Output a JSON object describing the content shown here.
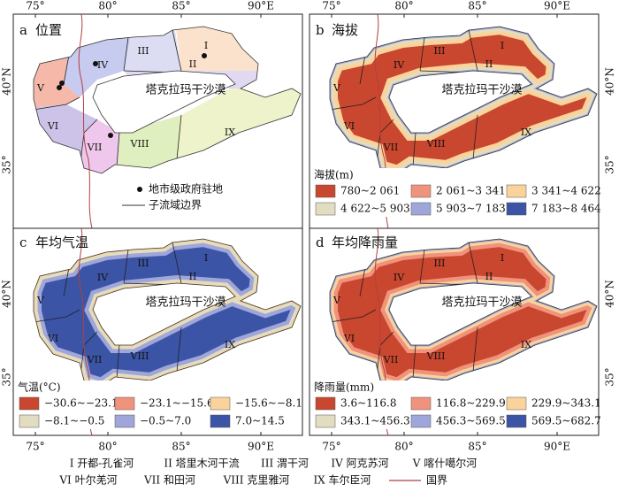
{
  "axes": {
    "lon_ticks": [
      "75°",
      "80°",
      "85°",
      "90°E"
    ],
    "lat_ticks": [
      "40°N",
      "35°"
    ]
  },
  "desert_label": "塔克拉玛干沙漠",
  "region_labels": [
    "I",
    "II",
    "III",
    "IV",
    "V",
    "VI",
    "VII",
    "VIII",
    "IX"
  ],
  "panels": [
    {
      "letter": "a",
      "title": "位置",
      "legend": [
        {
          "label": "地市级政府驻地"
        },
        {
          "label": "子流域边界"
        }
      ]
    },
    {
      "letter": "b",
      "title": "海拔",
      "legend_title": "海拔(m)",
      "legend": [
        {
          "label": "780~2 061",
          "color": "#c9462f"
        },
        {
          "label": "2 061~3 341",
          "color": "#f0937c"
        },
        {
          "label": "3 341~4 622",
          "color": "#fad39c"
        },
        {
          "label": "4 622~5 903",
          "color": "#e2ddc1"
        },
        {
          "label": "5 903~7 183",
          "color": "#9fa6d9"
        },
        {
          "label": "7 183~8 464",
          "color": "#3b54a5"
        }
      ]
    },
    {
      "letter": "c",
      "title": "年均气温",
      "legend_title": "气温(°C)",
      "legend": [
        {
          "label": "−30.6~−23.1",
          "color": "#c9462f"
        },
        {
          "label": "−23.1~−15.6",
          "color": "#f0937c"
        },
        {
          "label": "−15.6~−8.1",
          "color": "#fad39c"
        },
        {
          "label": "−8.1~−0.5",
          "color": "#e2ddc1"
        },
        {
          "label": "−0.5~7.0",
          "color": "#9fa6d9"
        },
        {
          "label": "7.0~14.5",
          "color": "#3b54a5"
        }
      ]
    },
    {
      "letter": "d",
      "title": "年均降雨量",
      "legend_title": "降雨量(mm)",
      "legend": [
        {
          "label": "3.6~116.8",
          "color": "#c9462f"
        },
        {
          "label": "116.8~229.9",
          "color": "#f0937c"
        },
        {
          "label": "229.9~343.1",
          "color": "#fad39c"
        },
        {
          "label": "343.1~456.3",
          "color": "#e2ddc1"
        },
        {
          "label": "456.3~569.5",
          "color": "#9fa6d9"
        },
        {
          "label": "569.5~682.7",
          "color": "#3b54a5"
        }
      ]
    }
  ],
  "footer": [
    "I 开都-孔雀河",
    "II 塔里木河干流",
    "III 渭干河",
    "IV 阿克苏河",
    "V 喀什噶尔河",
    "VI 叶尔羌河",
    "VII 和田河",
    "VIII 克里雅河",
    "IX 车尔臣河",
    "国界"
  ]
}
